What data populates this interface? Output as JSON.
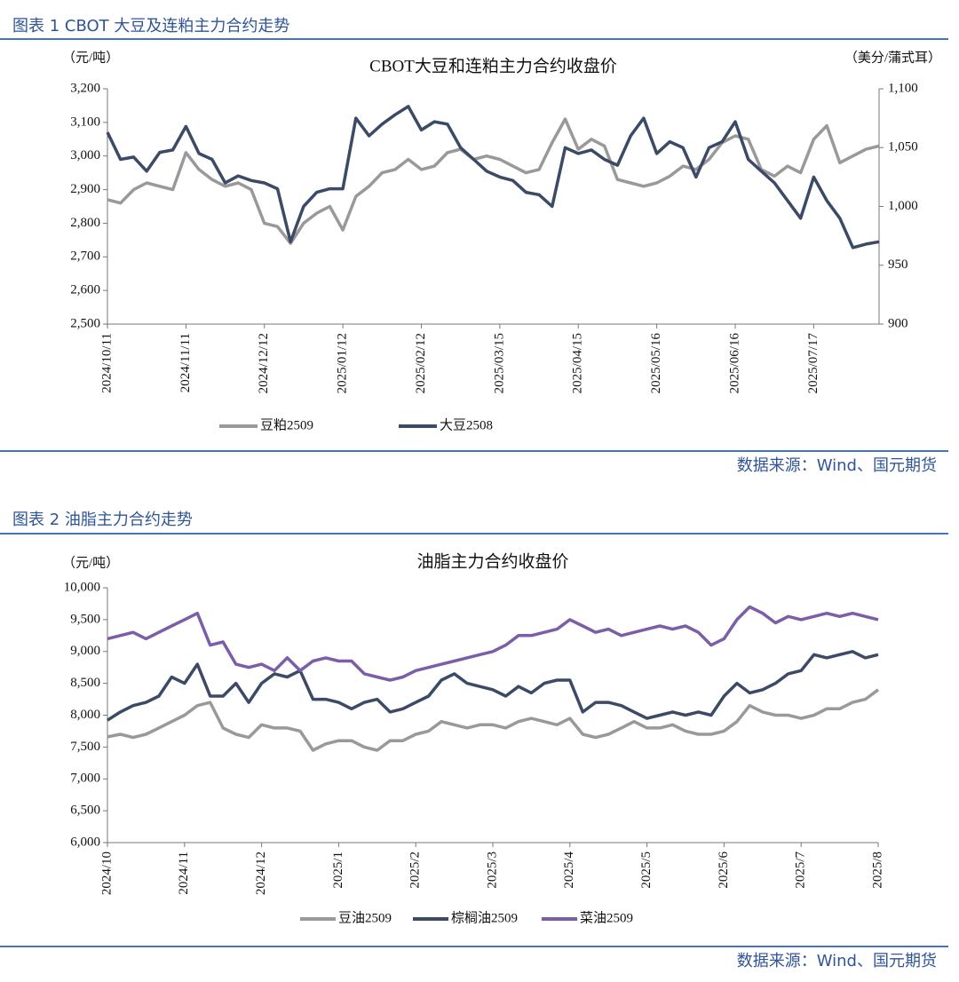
{
  "figures": [
    {
      "caption": "图表 1  CBOT 大豆及连粕主力合约走势",
      "source": "数据来源：Wind、国元期货"
    },
    {
      "caption": "图表 2  油脂主力合约走势",
      "source": "数据来源：Wind、国元期货"
    }
  ],
  "chart_data": [
    {
      "type": "line",
      "title": "CBOT大豆和连粕主力合约收盘价",
      "y_label": "（元/吨）",
      "y2_label": "（美分/蒲式耳）",
      "categories": [
        "2024/10/11",
        null,
        null,
        null,
        null,
        null,
        "2024/11/11",
        null,
        null,
        null,
        null,
        null,
        "2024/12/12",
        null,
        null,
        null,
        null,
        null,
        "2025/01/12",
        null,
        null,
        null,
        null,
        null,
        "2025/02/12",
        null,
        null,
        null,
        null,
        null,
        "2025/03/15",
        null,
        null,
        null,
        null,
        null,
        "2025/04/15",
        null,
        null,
        null,
        null,
        null,
        "2025/05/16",
        null,
        null,
        null,
        null,
        null,
        "2025/06/16",
        null,
        null,
        null,
        null,
        null,
        "2025/07/17",
        null,
        null,
        null,
        null,
        null
      ],
      "ylim": [
        2500,
        3200
      ],
      "yticks": [
        {
          "value": 2500,
          "label": "2,500"
        },
        {
          "value": 2600,
          "label": "2,600"
        },
        {
          "value": 2700,
          "label": "2,700"
        },
        {
          "value": 2800,
          "label": "2,800"
        },
        {
          "value": 2900,
          "label": "2,900"
        },
        {
          "value": 3000,
          "label": "3,000"
        },
        {
          "value": 3100,
          "label": "3,100"
        },
        {
          "value": 3200,
          "label": "3,200"
        }
      ],
      "y2lim": [
        900,
        1100
      ],
      "y2ticks": [
        900,
        950,
        {
          "value": 1000,
          "label": "1,000"
        },
        {
          "value": 1050,
          "label": "1,050"
        },
        {
          "value": 1100,
          "label": "1,100"
        }
      ],
      "legend": "bottom",
      "series": [
        {
          "name": "豆粕2509",
          "color": "#999999",
          "values": [
            2870,
            2860,
            2900,
            2920,
            2910,
            2900,
            3010,
            2960,
            2930,
            2910,
            2920,
            2900,
            2800,
            2790,
            2740,
            2800,
            2830,
            2850,
            2780,
            2880,
            2910,
            2950,
            2960,
            2990,
            2960,
            2970,
            3010,
            3020,
            2990,
            3000,
            2990,
            2970,
            2950,
            2960,
            3040,
            3110,
            3020,
            3050,
            3030,
            2930,
            2920,
            2910,
            2920,
            2940,
            2970,
            2960,
            2990,
            3040,
            3060,
            3050,
            2960,
            2940,
            2970,
            2950,
            3050,
            3090,
            2980,
            3000,
            3020,
            3030
          ]
        },
        {
          "name": "大豆2508",
          "color": "#3b4a66",
          "axis": "y2",
          "values": [
            1063,
            1040,
            1042,
            1030,
            1046,
            1048,
            1068,
            1045,
            1040,
            1020,
            1026,
            1022,
            1020,
            1015,
            970,
            1000,
            1012,
            1015,
            1015,
            1075,
            1060,
            1070,
            1078,
            1085,
            1065,
            1072,
            1070,
            1050,
            1040,
            1030,
            1025,
            1022,
            1012,
            1010,
            1000,
            1050,
            1045,
            1048,
            1040,
            1035,
            1060,
            1075,
            1045,
            1055,
            1050,
            1025,
            1050,
            1055,
            1072,
            1040,
            1030,
            1020,
            1005,
            990,
            1025,
            1005,
            990,
            965,
            968,
            970
          ]
        }
      ]
    },
    {
      "type": "line",
      "title": "油脂主力合约收盘价",
      "y_label": "（元/吨）",
      "categories": [
        "2024/10",
        null,
        null,
        null,
        null,
        null,
        "2024/11",
        null,
        null,
        null,
        null,
        null,
        "2024/12",
        null,
        null,
        null,
        null,
        null,
        "2025/1",
        null,
        null,
        null,
        null,
        null,
        "2025/2",
        null,
        null,
        null,
        null,
        null,
        "2025/3",
        null,
        null,
        null,
        null,
        null,
        "2025/4",
        null,
        null,
        null,
        null,
        null,
        "2025/5",
        null,
        null,
        null,
        null,
        null,
        "2025/6",
        null,
        null,
        null,
        null,
        null,
        "2025/7",
        null,
        null,
        null,
        null,
        null,
        "2025/8"
      ],
      "ylim": [
        6000,
        10000
      ],
      "yticks": [
        {
          "value": 6000,
          "label": "6,000"
        },
        {
          "value": 6500,
          "label": "6,500"
        },
        {
          "value": 7000,
          "label": "7,000"
        },
        {
          "value": 7500,
          "label": "7,500"
        },
        {
          "value": 8000,
          "label": "8,000"
        },
        {
          "value": 8500,
          "label": "8,500"
        },
        {
          "value": 9000,
          "label": "9,000"
        },
        {
          "value": 9500,
          "label": "9,500"
        },
        {
          "value": 10000,
          "label": "10,000"
        }
      ],
      "legend": "bottom",
      "series": [
        {
          "name": "豆油2509",
          "color": "#999999",
          "values": [
            7660,
            7700,
            7650,
            7700,
            7800,
            7900,
            8000,
            8150,
            8200,
            7800,
            7700,
            7650,
            7850,
            7800,
            7800,
            7750,
            7450,
            7550,
            7600,
            7600,
            7500,
            7450,
            7600,
            7600,
            7700,
            7750,
            7900,
            7850,
            7800,
            7850,
            7850,
            7800,
            7900,
            7950,
            7900,
            7850,
            7950,
            7700,
            7650,
            7700,
            7800,
            7900,
            7800,
            7800,
            7850,
            7750,
            7700,
            7700,
            7750,
            7900,
            8150,
            8050,
            8000,
            8000,
            7950,
            8000,
            8100,
            8100,
            8200,
            8250,
            8400
          ]
        },
        {
          "name": "棕榈油2509",
          "color": "#3b4a66",
          "values": [
            7920,
            8050,
            8150,
            8200,
            8300,
            8600,
            8500,
            8800,
            8300,
            8300,
            8500,
            8200,
            8500,
            8650,
            8600,
            8700,
            8250,
            8250,
            8200,
            8100,
            8200,
            8250,
            8050,
            8100,
            8200,
            8300,
            8550,
            8650,
            8500,
            8450,
            8400,
            8300,
            8450,
            8350,
            8500,
            8550,
            8550,
            8050,
            8200,
            8200,
            8150,
            8050,
            7950,
            8000,
            8050,
            8000,
            8050,
            8000,
            8300,
            8500,
            8350,
            8400,
            8500,
            8650,
            8700,
            8950,
            8900,
            8950,
            9000,
            8900,
            8950
          ]
        },
        {
          "name": "菜油2509",
          "color": "#7b5ea7",
          "values": [
            9200,
            9250,
            9300,
            9200,
            9300,
            9400,
            9500,
            9600,
            9100,
            9150,
            8800,
            8750,
            8800,
            8700,
            8900,
            8700,
            8850,
            8900,
            8850,
            8850,
            8650,
            8600,
            8550,
            8600,
            8700,
            8750,
            8800,
            8850,
            8900,
            8950,
            9000,
            9100,
            9250,
            9250,
            9300,
            9350,
            9500,
            9400,
            9300,
            9350,
            9250,
            9300,
            9350,
            9400,
            9350,
            9400,
            9300,
            9100,
            9200,
            9500,
            9700,
            9600,
            9450,
            9550,
            9500,
            9550,
            9600,
            9550,
            9600,
            9550,
            9500
          ]
        }
      ]
    }
  ]
}
